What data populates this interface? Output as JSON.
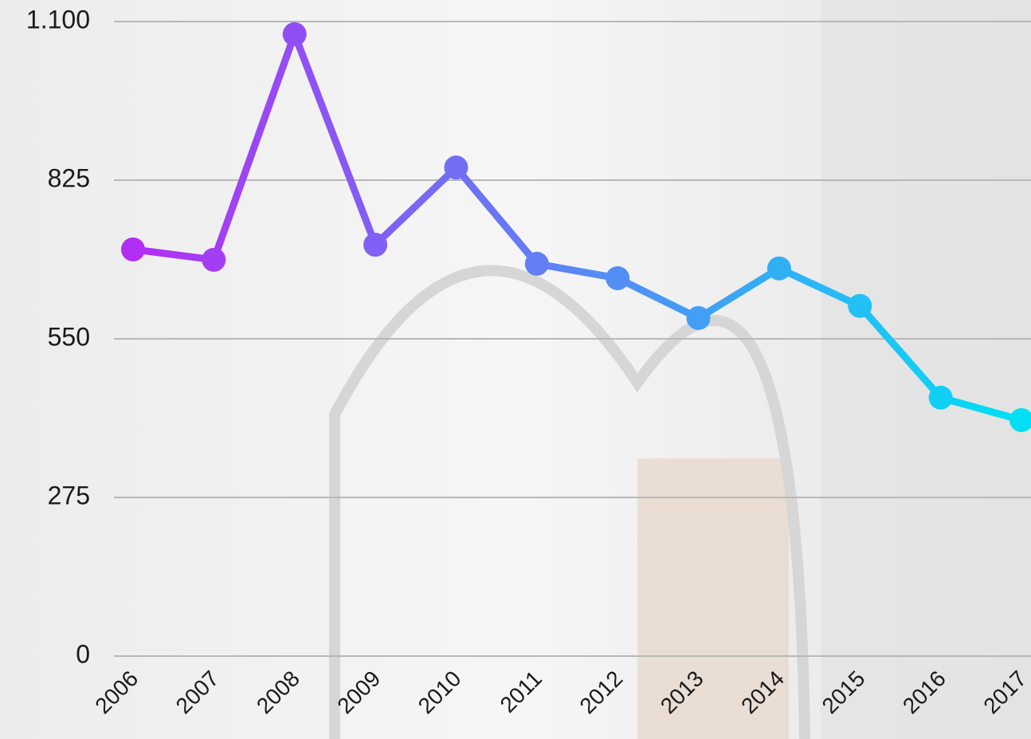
{
  "chart_data": {
    "type": "line",
    "categories": [
      "2006",
      "2007",
      "2008",
      "2009",
      "2010",
      "2011",
      "2012",
      "2013",
      "2014",
      "2015",
      "2016",
      "2017"
    ],
    "series": [
      {
        "name": null,
        "color": [
          "#b32ef5",
          "#00e0f5"
        ],
        "values": [
          705,
          687,
          1078,
          713,
          847,
          680,
          655,
          586,
          672,
          607,
          448,
          409
        ]
      }
    ],
    "ylim": [
      0,
      1100
    ],
    "yticks": [
      0,
      275,
      550,
      825,
      {
        "value": 1100,
        "label": "1.100"
      }
    ],
    "grid": true
  }
}
